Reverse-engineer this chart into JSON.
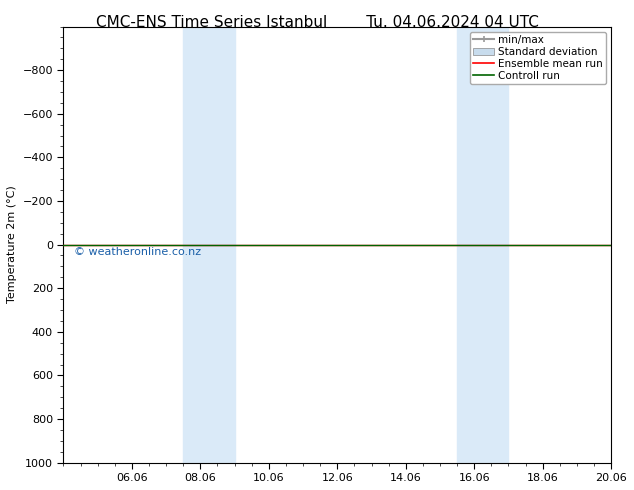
{
  "title_left": "CMC-ENS Time Series Istanbul",
  "title_right": "Tu. 04.06.2024 04 UTC",
  "ylabel": "Temperature 2m (°C)",
  "ylim_top": -1000,
  "ylim_bottom": 1000,
  "yticks": [
    -800,
    -600,
    -400,
    -200,
    0,
    200,
    400,
    600,
    800,
    1000
  ],
  "xtick_labels": [
    "06.06",
    "08.06",
    "10.06",
    "12.06",
    "14.06",
    "16.06",
    "18.06",
    "20.06"
  ],
  "xtick_positions": [
    2,
    4,
    6,
    8,
    10,
    12,
    14,
    16
  ],
  "xlim": [
    0,
    16
  ],
  "shaded_regions": [
    {
      "xmin": 3.5,
      "xmax": 5.0
    },
    {
      "xmin": 11.5,
      "xmax": 13.0
    }
  ],
  "shaded_color": "#daeaf8",
  "control_run_y": 0,
  "ensemble_mean_y": 0,
  "watermark": "© weatheronline.co.nz",
  "watermark_color": "#1a5fa8",
  "bg_color": "#ffffff",
  "legend_items": [
    {
      "label": "min/max",
      "color": "#999999",
      "lw": 1.5,
      "style": "-"
    },
    {
      "label": "Standard deviation",
      "color": "#c8dced",
      "lw": 6,
      "style": "-"
    },
    {
      "label": "Ensemble mean run",
      "color": "red",
      "lw": 1.2,
      "style": "-"
    },
    {
      "label": "Controll run",
      "color": "darkgreen",
      "lw": 1.2,
      "style": "-"
    }
  ],
  "font_size_title": 11,
  "font_size_axis": 8,
  "font_size_legend": 7.5,
  "font_size_watermark": 8
}
